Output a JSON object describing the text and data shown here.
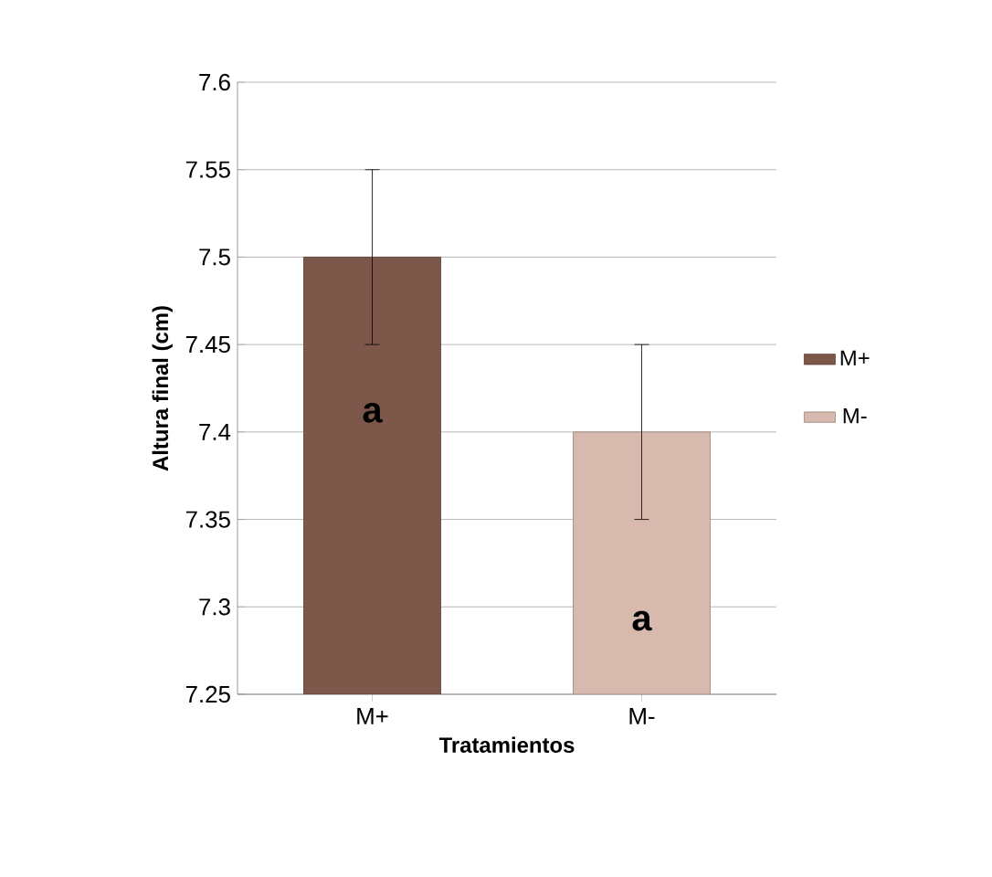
{
  "chart_data": {
    "type": "bar",
    "xlabel": "Tratamientos",
    "ylabel": "Altura final (cm)",
    "categories": [
      "M+",
      "M-"
    ],
    "series": [
      {
        "name": "M+",
        "color": "#7d574a",
        "values": [
          7.5,
          null
        ],
        "errors": [
          0.05,
          null
        ]
      },
      {
        "name": "M-",
        "color": "#d8b9ae",
        "values": [
          null,
          7.4
        ],
        "errors": [
          null,
          0.05
        ]
      }
    ],
    "ylim": [
      7.25,
      7.6
    ],
    "yticks": [
      7.25,
      7.3,
      7.35,
      7.4,
      7.45,
      7.5,
      7.55,
      7.6
    ],
    "grid": "y",
    "legend": "right",
    "annotations": [
      "a",
      "a"
    ]
  }
}
